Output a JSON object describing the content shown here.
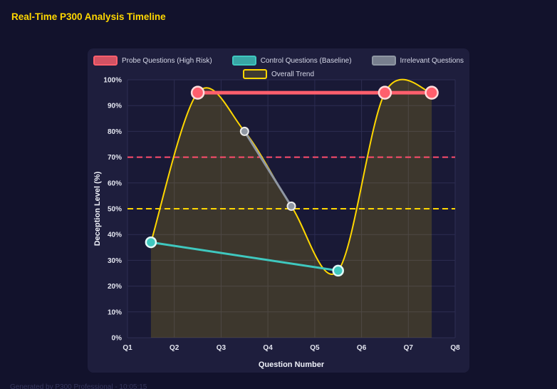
{
  "page": {
    "title": "Real-Time P300 Analysis Timeline",
    "footer": "Generated by P300 Professional - 10:05:15"
  },
  "colors": {
    "background": "#12122c",
    "panel": "#1e1e3d",
    "plot_background": "#191936",
    "grid": "#2d2d52",
    "axis_text": "#e4e6f0",
    "title": "#ffd700"
  },
  "chart_data": {
    "type": "line",
    "title": "Real-Time P300 Analysis Timeline",
    "xlabel": "Question Number",
    "ylabel": "Deception Level (%)",
    "x_tick_labels": [
      "Q1",
      "Q2",
      "Q3",
      "Q4",
      "Q5",
      "Q6",
      "Q7",
      "Q8"
    ],
    "x_range": [
      1,
      8
    ],
    "ylim": [
      0,
      100
    ],
    "y_tick_labels": [
      "0%",
      "10%",
      "20%",
      "30%",
      "40%",
      "50%",
      "60%",
      "70%",
      "80%",
      "90%",
      "100%"
    ],
    "grid": true,
    "legend_position": "top",
    "series": [
      {
        "name": "Probe Questions (High Risk)",
        "type": "line",
        "color": "#ff5f6d",
        "marker_border": "#ffdcdc",
        "x": [
          2.5,
          6.5,
          7.5
        ],
        "y": [
          95,
          95,
          95
        ],
        "line_width": 5,
        "marker_radius": 8.5
      },
      {
        "name": "Control Questions (Baseline)",
        "type": "line",
        "color": "#3fc8bf",
        "marker_border": "#e2faf8",
        "x": [
          1.5,
          5.5
        ],
        "y": [
          37,
          26
        ],
        "line_width": 3,
        "marker_radius": 7
      },
      {
        "name": "Irrelevant Questions",
        "type": "line",
        "color": "#8f97a3",
        "marker_border": "#ececec",
        "x": [
          3.5,
          4.5
        ],
        "y": [
          80,
          51
        ],
        "line_width": 3,
        "marker_radius": 5.5
      },
      {
        "name": "Overall Trend",
        "type": "spline",
        "color": "#ffd700",
        "marker_border": "#ffd700",
        "x": [
          1.5,
          2.5,
          3.5,
          4.5,
          5.5,
          6.5,
          7.5
        ],
        "y": [
          37,
          95,
          80,
          51,
          26,
          95,
          95
        ],
        "line_width": 2,
        "marker_radius": 0,
        "fill": true,
        "fill_color": "rgba(255,215,0,0.16)"
      }
    ],
    "reference_lines": [
      {
        "y": 70,
        "color": "#ff4d6d",
        "dash": true
      },
      {
        "y": 50,
        "color": "#ffd700",
        "dash": true
      }
    ]
  }
}
